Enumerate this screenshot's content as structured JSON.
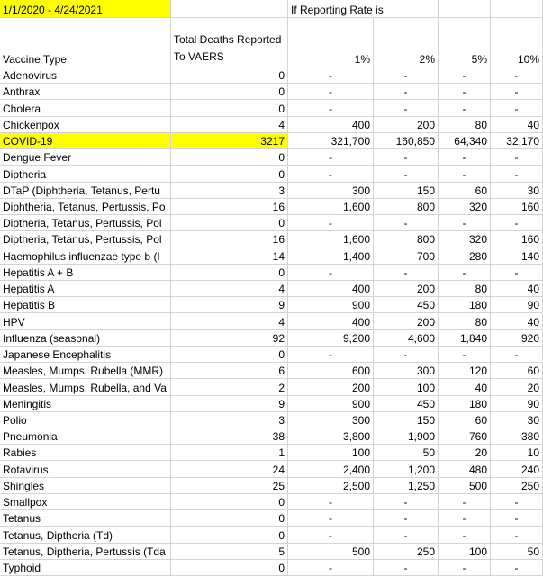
{
  "header": {
    "date_range": "1/1/2020 - 4/24/2021",
    "rate_caption": "If Reporting Rate is"
  },
  "table": {
    "columns": [
      "Vaccine Type",
      "Total Deaths Reported To VAERS",
      "1%",
      "2%",
      "5%",
      "10%"
    ],
    "rows": [
      [
        "Adenovirus",
        "0",
        "-",
        "-",
        "-",
        "-"
      ],
      [
        "Anthrax",
        "0",
        "-",
        "-",
        "-",
        "-"
      ],
      [
        "Cholera",
        "0",
        "-",
        "-",
        "-",
        "-"
      ],
      [
        "Chickenpox",
        "4",
        "400",
        "200",
        "80",
        "40"
      ],
      [
        "COVID-19",
        "3217",
        "321,700",
        "160,850",
        "64,340",
        "32,170"
      ],
      [
        "Dengue Fever",
        "0",
        "-",
        "-",
        "-",
        "-"
      ],
      [
        "Diptheria",
        "0",
        "-",
        "-",
        "-",
        "-"
      ],
      [
        "DTaP (Diphtheria, Tetanus, Pertu",
        "3",
        "300",
        "150",
        "60",
        "30"
      ],
      [
        "Diphtheria, Tetanus, Pertussis, Po",
        "16",
        "1,600",
        "800",
        "320",
        "160"
      ],
      [
        "Diptheria, Tetanus, Pertussis, Pol",
        "0",
        "-",
        "-",
        "-",
        "-"
      ],
      [
        "Diptheria, Tetanus, Pertussis, Pol",
        "16",
        "1,600",
        "800",
        "320",
        "160"
      ],
      [
        "Haemophilus influenzae type b (I",
        "14",
        "1,400",
        "700",
        "280",
        "140"
      ],
      [
        "Hepatitis A + B",
        "0",
        "-",
        "-",
        "-",
        "-"
      ],
      [
        "Hepatitis A",
        "4",
        "400",
        "200",
        "80",
        "40"
      ],
      [
        "Hepatitis B",
        "9",
        "900",
        "450",
        "180",
        "90"
      ],
      [
        "HPV",
        "4",
        "400",
        "200",
        "80",
        "40"
      ],
      [
        "Influenza (seasonal)",
        "92",
        "9,200",
        "4,600",
        "1,840",
        "920"
      ],
      [
        "Japanese Encephalitis",
        "0",
        "-",
        "-",
        "-",
        "-"
      ],
      [
        "Measles, Mumps, Rubella (MMR)",
        "6",
        "600",
        "300",
        "120",
        "60"
      ],
      [
        "Measles, Mumps, Rubella, and Va",
        "2",
        "200",
        "100",
        "40",
        "20"
      ],
      [
        "Meningitis",
        "9",
        "900",
        "450",
        "180",
        "90"
      ],
      [
        "Polio",
        "3",
        "300",
        "150",
        "60",
        "30"
      ],
      [
        "Pneumonia",
        "38",
        "3,800",
        "1,900",
        "760",
        "380"
      ],
      [
        "Rabies",
        "1",
        "100",
        "50",
        "20",
        "10"
      ],
      [
        "Rotavirus",
        "24",
        "2,400",
        "1,200",
        "480",
        "240"
      ],
      [
        "Shingles",
        "25",
        "2,500",
        "1,250",
        "500",
        "250"
      ],
      [
        "Smallpox",
        "0",
        "-",
        "-",
        "-",
        "-"
      ],
      [
        "Tetanus",
        "0",
        "-",
        "-",
        "-",
        "-"
      ],
      [
        "Tetanus, Diptheria (Td)",
        "0",
        "-",
        "-",
        "-",
        "-"
      ],
      [
        "Tetanus, Diptheria, Pertussis (Tda",
        "5",
        "500",
        "250",
        "100",
        "50"
      ],
      [
        "Typhoid",
        "0",
        "-",
        "-",
        "-",
        "-"
      ]
    ]
  }
}
